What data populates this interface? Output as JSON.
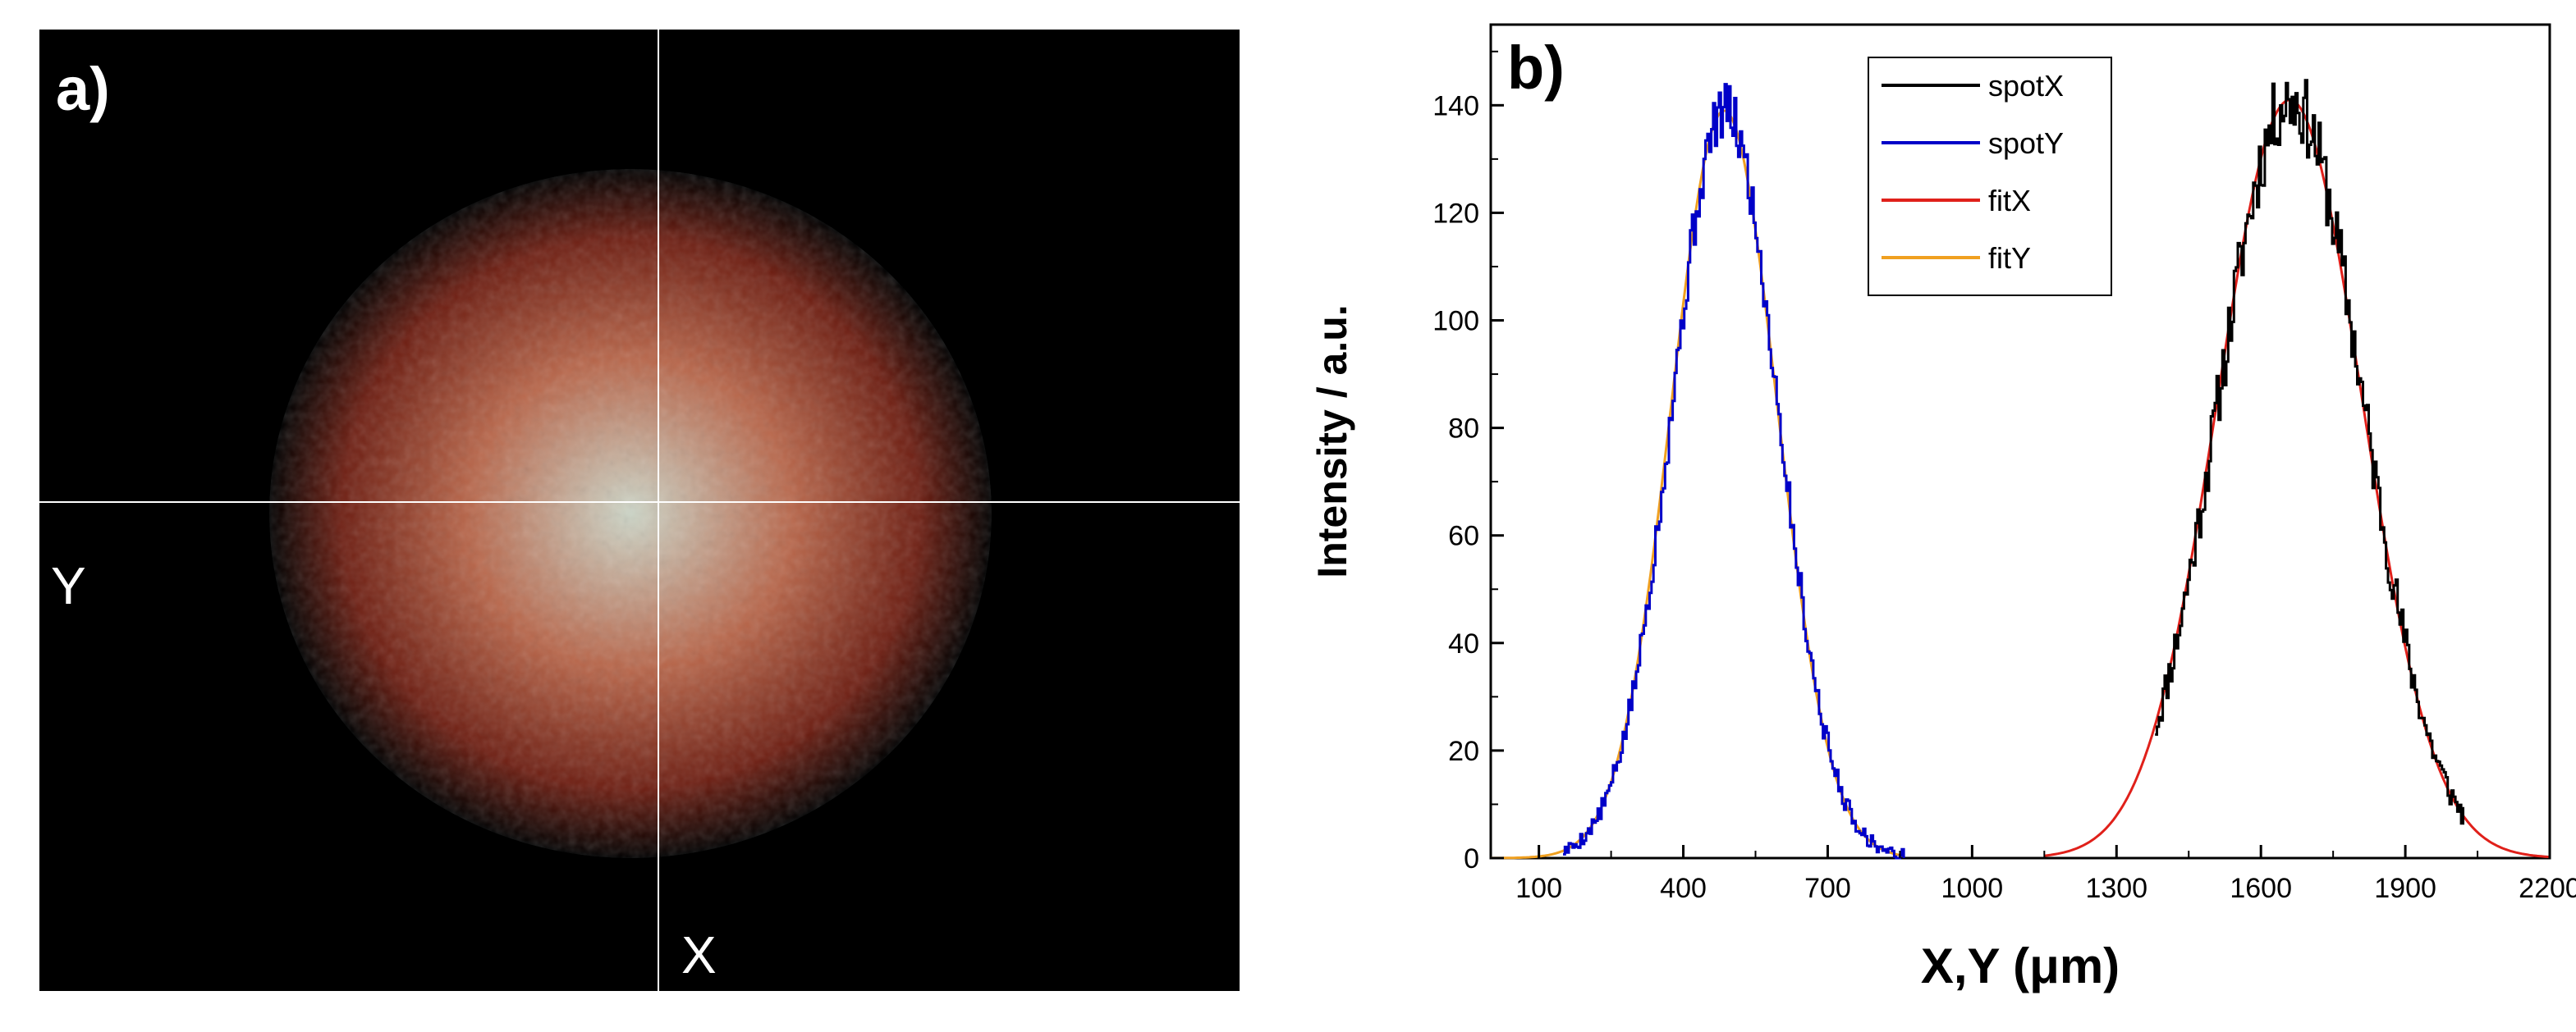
{
  "panel_a": {
    "label": "a)",
    "y_marker": "Y",
    "x_marker": "X",
    "spot_colors": {
      "center": "#cdd6c8",
      "mid": "#b8664a",
      "edge": "#6e1e12",
      "background": "#000000"
    },
    "crosshair_color": "#ffffff"
  },
  "chart_data": {
    "type": "line",
    "panel_label": "b)",
    "xlabel": "X,Y (μm)",
    "ylabel": "Intensity / a.u.",
    "xlim": [
      0,
      2200
    ],
    "ylim": [
      0,
      155
    ],
    "x_ticks": [
      100,
      400,
      700,
      1000,
      1300,
      1600,
      1900,
      2200
    ],
    "y_ticks": [
      0,
      20,
      40,
      60,
      80,
      100,
      120,
      140
    ],
    "grid": false,
    "legend_position": "top-center",
    "series": [
      {
        "name": "spotX",
        "color": "#000000",
        "kind": "noisy",
        "center": 1660,
        "amplitude": 141,
        "sigma": 150,
        "x_range": [
          1380,
          2020
        ],
        "noise": 7,
        "seed": 11
      },
      {
        "name": "spotY",
        "color": "#0000c8",
        "kind": "noisy",
        "center": 485,
        "amplitude": 139,
        "sigma": 110,
        "x_range": [
          150,
          860
        ],
        "noise": 5,
        "seed": 5
      },
      {
        "name": "fitX",
        "color": "#e0201a",
        "kind": "fit",
        "center": 1660,
        "amplitude": 141,
        "sigma": 150,
        "x_range": [
          1150,
          2200
        ]
      },
      {
        "name": "fitY",
        "color": "#f0a020",
        "kind": "fit",
        "center": 485,
        "amplitude": 139,
        "sigma": 110,
        "x_range": [
          0,
          860
        ]
      }
    ]
  }
}
